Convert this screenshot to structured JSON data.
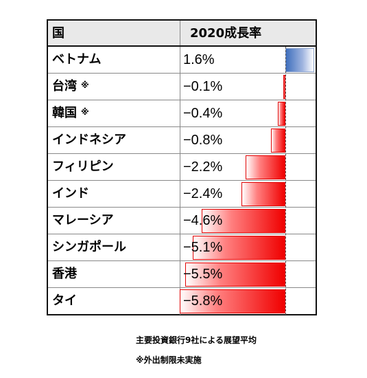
{
  "header": {
    "country": "国",
    "growth": "2020成長率"
  },
  "rows": [
    {
      "name": "ベトナム",
      "mark": "",
      "value": "1.6%",
      "growth": 1.6
    },
    {
      "name": "台湾",
      "mark": "※",
      "value": "−0.1%",
      "growth": -0.1
    },
    {
      "name": "韓国",
      "mark": "※",
      "value": "−0.4%",
      "growth": -0.4
    },
    {
      "name": "インドネシア",
      "mark": "",
      "value": "−0.8%",
      "growth": -0.8
    },
    {
      "name": "フィリピン",
      "mark": "",
      "value": "−2.2%",
      "growth": -2.2
    },
    {
      "name": "インド",
      "mark": "",
      "value": "−2.4%",
      "growth": -2.4
    },
    {
      "name": "マレーシア",
      "mark": "",
      "value": "−4.6%",
      "growth": -4.6
    },
    {
      "name": "シンガポール",
      "mark": "",
      "value": "−5.1%",
      "growth": -5.1
    },
    {
      "name": "香港",
      "mark": "",
      "value": "−5.5%",
      "growth": -5.5
    },
    {
      "name": "タイ",
      "mark": "",
      "value": "−5.8%",
      "growth": -5.8
    }
  ],
  "notes": {
    "line1": "主要投資銀行9社による展望平均",
    "line2": "※外出制限未実施"
  },
  "colors": {
    "negative": "#f00000",
    "positive": "#3f6fbd"
  }
}
